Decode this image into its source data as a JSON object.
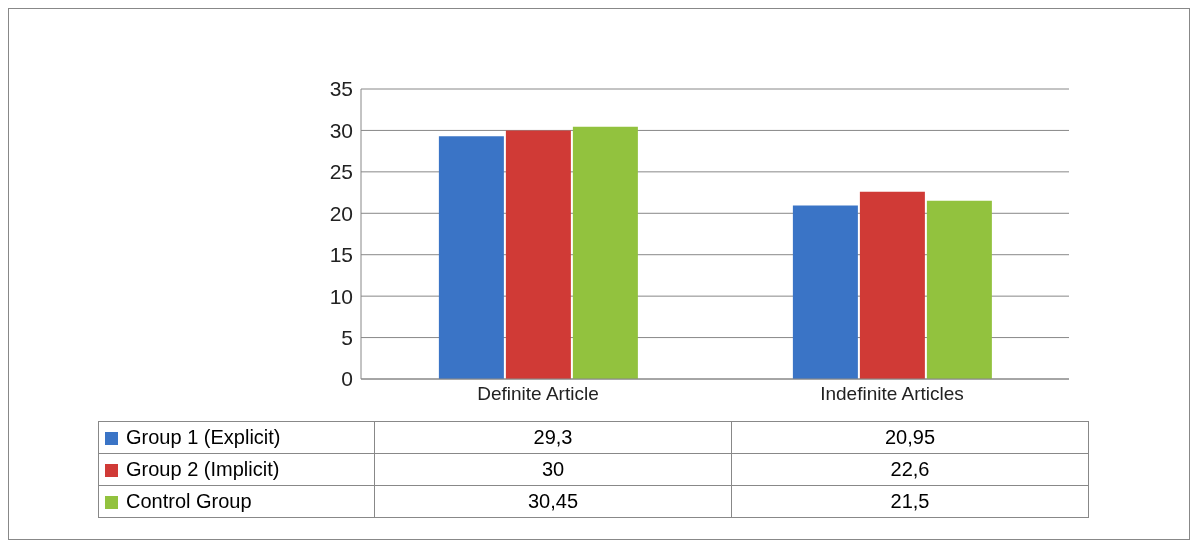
{
  "chart_data": {
    "type": "bar",
    "categories": [
      "Definite Article",
      "Indefinite Articles"
    ],
    "series": [
      {
        "name": "Group 1 (Explicit)",
        "color": "#3a74c6",
        "values": [
          29.3,
          20.95
        ],
        "value_labels": [
          "29,3",
          "20,95"
        ]
      },
      {
        "name": "Group 2 (Implicit)",
        "color": "#d03a36",
        "values": [
          30,
          22.6
        ],
        "value_labels": [
          "30",
          "22,6"
        ]
      },
      {
        "name": "Control Group",
        "color": "#92c23e",
        "values": [
          30.45,
          21.5
        ],
        "value_labels": [
          "30,45",
          "21,5"
        ]
      }
    ],
    "ylim": [
      0,
      35
    ],
    "yticks": [
      0,
      5,
      10,
      15,
      20,
      25,
      30,
      35
    ],
    "grid": "y",
    "legend": "bottom"
  }
}
